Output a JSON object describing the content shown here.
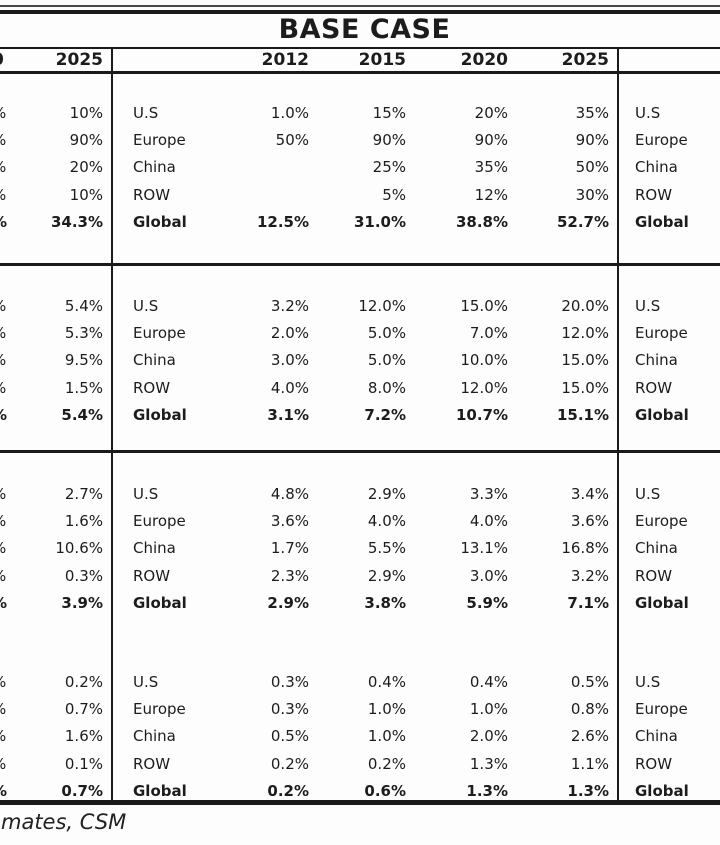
{
  "title": "BASE CASE",
  "header": {
    "left_clipped_char": "0",
    "left_year": "2025",
    "years": [
      "2012",
      "2015",
      "2020",
      "2025"
    ]
  },
  "left_clipped_char": "%",
  "footer": "mates, CSM",
  "blocks": [
    {
      "rows": [
        {
          "left": "10%",
          "label": "U.S",
          "v1": "1.0%",
          "v2": "15%",
          "v3": "20%",
          "v4": "35%"
        },
        {
          "left": "90%",
          "label": "Europe",
          "v1": "50%",
          "v2": "90%",
          "v3": "90%",
          "v4": "90%"
        },
        {
          "left": "20%",
          "label": "China",
          "v1": "",
          "v2": "25%",
          "v3": "35%",
          "v4": "50%"
        },
        {
          "left": "10%",
          "label": "ROW",
          "v1": "",
          "v2": "5%",
          "v3": "12%",
          "v4": "30%"
        },
        {
          "left": "34.3%",
          "label": "Global",
          "v1": "12.5%",
          "v2": "31.0%",
          "v3": "38.8%",
          "v4": "52.7%"
        }
      ]
    },
    {
      "rows": [
        {
          "left": "5.4%",
          "label": "U.S",
          "v1": "3.2%",
          "v2": "12.0%",
          "v3": "15.0%",
          "v4": "20.0%"
        },
        {
          "left": "5.3%",
          "label": "Europe",
          "v1": "2.0%",
          "v2": "5.0%",
          "v3": "7.0%",
          "v4": "12.0%"
        },
        {
          "left": "9.5%",
          "label": "China",
          "v1": "3.0%",
          "v2": "5.0%",
          "v3": "10.0%",
          "v4": "15.0%"
        },
        {
          "left": "1.5%",
          "label": "ROW",
          "v1": "4.0%",
          "v2": "8.0%",
          "v3": "12.0%",
          "v4": "15.0%"
        },
        {
          "left": "5.4%",
          "label": "Global",
          "v1": "3.1%",
          "v2": "7.2%",
          "v3": "10.7%",
          "v4": "15.1%"
        }
      ]
    },
    {
      "rows": [
        {
          "left": "2.7%",
          "label": "U.S",
          "v1": "4.8%",
          "v2": "2.9%",
          "v3": "3.3%",
          "v4": "3.4%"
        },
        {
          "left": "1.6%",
          "label": "Europe",
          "v1": "3.6%",
          "v2": "4.0%",
          "v3": "4.0%",
          "v4": "3.6%"
        },
        {
          "left": "10.6%",
          "label": "China",
          "v1": "1.7%",
          "v2": "5.5%",
          "v3": "13.1%",
          "v4": "16.8%"
        },
        {
          "left": "0.3%",
          "label": "ROW",
          "v1": "2.3%",
          "v2": "2.9%",
          "v3": "3.0%",
          "v4": "3.2%"
        },
        {
          "left": "3.9%",
          "label": "Global",
          "v1": "2.9%",
          "v2": "3.8%",
          "v3": "5.9%",
          "v4": "7.1%"
        }
      ]
    },
    {
      "rows": [
        {
          "left": "0.2%",
          "label": "U.S",
          "v1": "0.3%",
          "v2": "0.4%",
          "v3": "0.4%",
          "v4": "0.5%"
        },
        {
          "left": "0.7%",
          "label": "Europe",
          "v1": "0.3%",
          "v2": "1.0%",
          "v3": "1.0%",
          "v4": "0.8%"
        },
        {
          "left": "1.6%",
          "label": "China",
          "v1": "0.5%",
          "v2": "1.0%",
          "v3": "2.0%",
          "v4": "2.6%"
        },
        {
          "left": "0.1%",
          "label": "ROW",
          "v1": "0.2%",
          "v2": "0.2%",
          "v3": "1.3%",
          "v4": "1.1%"
        },
        {
          "left": "0.7%",
          "label": "Global",
          "v1": "0.2%",
          "v2": "0.6%",
          "v3": "1.3%",
          "v4": "1.3%"
        }
      ]
    }
  ]
}
